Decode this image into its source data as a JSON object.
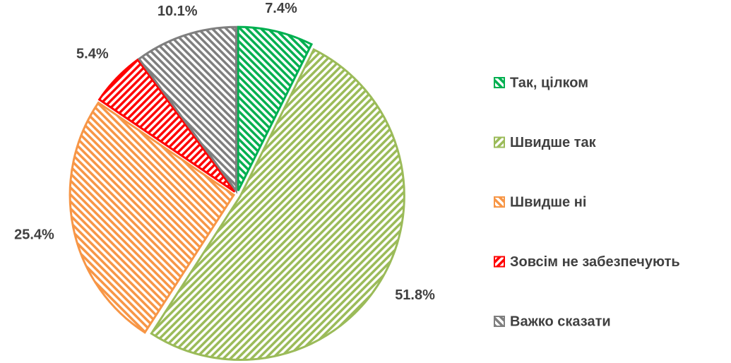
{
  "chart_data": {
    "type": "pie",
    "categories": [
      "Так, цілком",
      "Швидше так",
      "Швидше ні",
      "Зовсім не забезпечують",
      "Важко сказати"
    ],
    "values": [
      7.4,
      51.8,
      25.4,
      5.4,
      10.1
    ],
    "value_labels": [
      "7.4%",
      "51.8%",
      "25.4%",
      "5.4%",
      "10.1%"
    ],
    "colors": [
      "#00b050",
      "#9bbb59",
      "#f79646",
      "#ff0000",
      "#7f7f7f"
    ],
    "legend": "right"
  }
}
